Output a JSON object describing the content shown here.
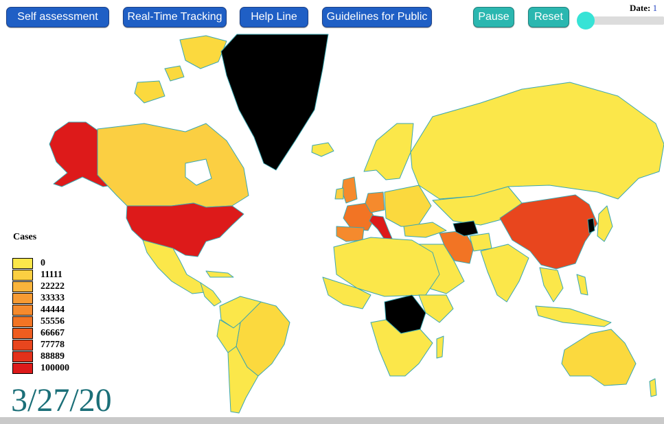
{
  "toolbar": {
    "self_assessment": "Self assessment",
    "realtime_tracking": "Real-Time Tracking",
    "help_line": "Help Line",
    "guidelines": "Guidelines for Public",
    "pause": "Pause",
    "reset": "Reset",
    "date_label": "Date:",
    "date_value": "1"
  },
  "legend": {
    "title": "Cases",
    "items": [
      {
        "label": "0",
        "color": "#fbe74a"
      },
      {
        "label": "11111",
        "color": "#fbcf42"
      },
      {
        "label": "22222",
        "color": "#f9b43c"
      },
      {
        "label": "33333",
        "color": "#f79b33"
      },
      {
        "label": "44444",
        "color": "#f58a2d"
      },
      {
        "label": "55556",
        "color": "#f27424"
      },
      {
        "label": "66667",
        "color": "#ee5d20"
      },
      {
        "label": "77778",
        "color": "#e8461e"
      },
      {
        "label": "88889",
        "color": "#e3311b"
      },
      {
        "label": "100000",
        "color": "#dd1a1a"
      }
    ]
  },
  "current_date": "3/27/20",
  "map_colors": {
    "ocean": "#ffffff",
    "border": "#3aa6b0",
    "no_data": "#000000"
  }
}
